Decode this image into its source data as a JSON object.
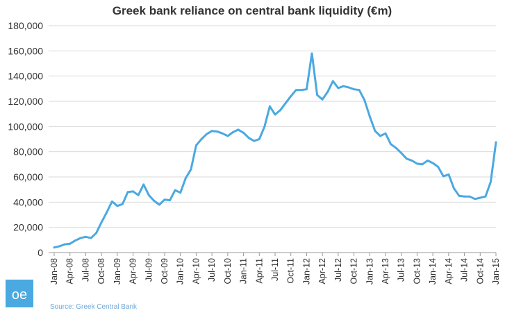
{
  "chart_data": {
    "type": "line",
    "title": "Greek bank reliance on central bank liquidity (€m)",
    "xlabel": "",
    "ylabel": "",
    "ylim": [
      0,
      180000
    ],
    "y_ticks": [
      0,
      20000,
      40000,
      60000,
      80000,
      100000,
      120000,
      140000,
      160000,
      180000
    ],
    "y_tick_labels": [
      "0",
      "20,000",
      "40,000",
      "60,000",
      "80,000",
      "100,000",
      "120,000",
      "140,000",
      "160,000",
      "180,000"
    ],
    "x_tick_labels": [
      "Jan-08",
      "Apr-08",
      "Jul-08",
      "Oct-08",
      "Jan-09",
      "Apr-09",
      "Jul-09",
      "Oct-09",
      "Jan-10",
      "Apr-10",
      "Jul-10",
      "Oct-10",
      "Jan-11",
      "Apr-11",
      "Jul-11",
      "Oct-11",
      "Jan-12",
      "Apr-12",
      "Jul-12",
      "Oct-12",
      "Jan-13",
      "Apr-13",
      "Jul-13",
      "Oct-13",
      "Jan-14",
      "Apr-14",
      "Jul-14",
      "Oct-14",
      "Jan-15"
    ],
    "x": [
      "Jan-08",
      "Feb-08",
      "Mar-08",
      "Apr-08",
      "May-08",
      "Jun-08",
      "Jul-08",
      "Aug-08",
      "Sep-08",
      "Oct-08",
      "Nov-08",
      "Dec-08",
      "Jan-09",
      "Feb-09",
      "Mar-09",
      "Apr-09",
      "May-09",
      "Jun-09",
      "Jul-09",
      "Aug-09",
      "Sep-09",
      "Oct-09",
      "Nov-09",
      "Dec-09",
      "Jan-10",
      "Feb-10",
      "Mar-10",
      "Apr-10",
      "May-10",
      "Jun-10",
      "Jul-10",
      "Aug-10",
      "Sep-10",
      "Oct-10",
      "Nov-10",
      "Dec-10",
      "Jan-11",
      "Feb-11",
      "Mar-11",
      "Apr-11",
      "May-11",
      "Jun-11",
      "Jul-11",
      "Aug-11",
      "Sep-11",
      "Oct-11",
      "Nov-11",
      "Dec-11",
      "Jan-12",
      "Feb-12",
      "Mar-12",
      "Apr-12",
      "May-12",
      "Jun-12",
      "Jul-12",
      "Aug-12",
      "Sep-12",
      "Oct-12",
      "Nov-12",
      "Dec-12",
      "Jan-13",
      "Feb-13",
      "Mar-13",
      "Apr-13",
      "May-13",
      "Jun-13",
      "Jul-13",
      "Aug-13",
      "Sep-13",
      "Oct-13",
      "Nov-13",
      "Dec-13",
      "Jan-14",
      "Feb-14",
      "Mar-14",
      "Apr-14",
      "May-14",
      "Jun-14",
      "Jul-14",
      "Aug-14",
      "Sep-14",
      "Oct-14",
      "Nov-14",
      "Dec-14",
      "Jan-15"
    ],
    "series": [
      {
        "values": [
          4000,
          5000,
          6500,
          7000,
          9500,
          11500,
          12500,
          11500,
          15500,
          24000,
          32000,
          40500,
          37000,
          38500,
          48000,
          48500,
          45500,
          54000,
          45500,
          41000,
          38000,
          42000,
          41500,
          49500,
          47500,
          59000,
          66000,
          85000,
          90000,
          94000,
          96500,
          96000,
          94500,
          92500,
          95500,
          97500,
          95000,
          91000,
          88500,
          90000,
          100000,
          116000,
          109500,
          113000,
          118500,
          124000,
          129000,
          129000,
          129500,
          158000,
          125000,
          121500,
          127500,
          136000,
          130500,
          132000,
          131000,
          129500,
          129000,
          121000,
          108000,
          96500,
          92500,
          94500,
          86000,
          83000,
          79000,
          74500,
          73000,
          70500,
          70000,
          73000,
          71000,
          68000,
          60500,
          62000,
          51000,
          45000,
          44500,
          44500,
          42500,
          43500,
          44500,
          56000,
          87500
        ],
        "color": "#4aa9e1"
      }
    ],
    "grid": "horizontal",
    "legend": "none"
  },
  "footer": {
    "logo_text": "oe",
    "logo_color": "#4aa9e1",
    "source": "Source: Greek Central Bank"
  }
}
